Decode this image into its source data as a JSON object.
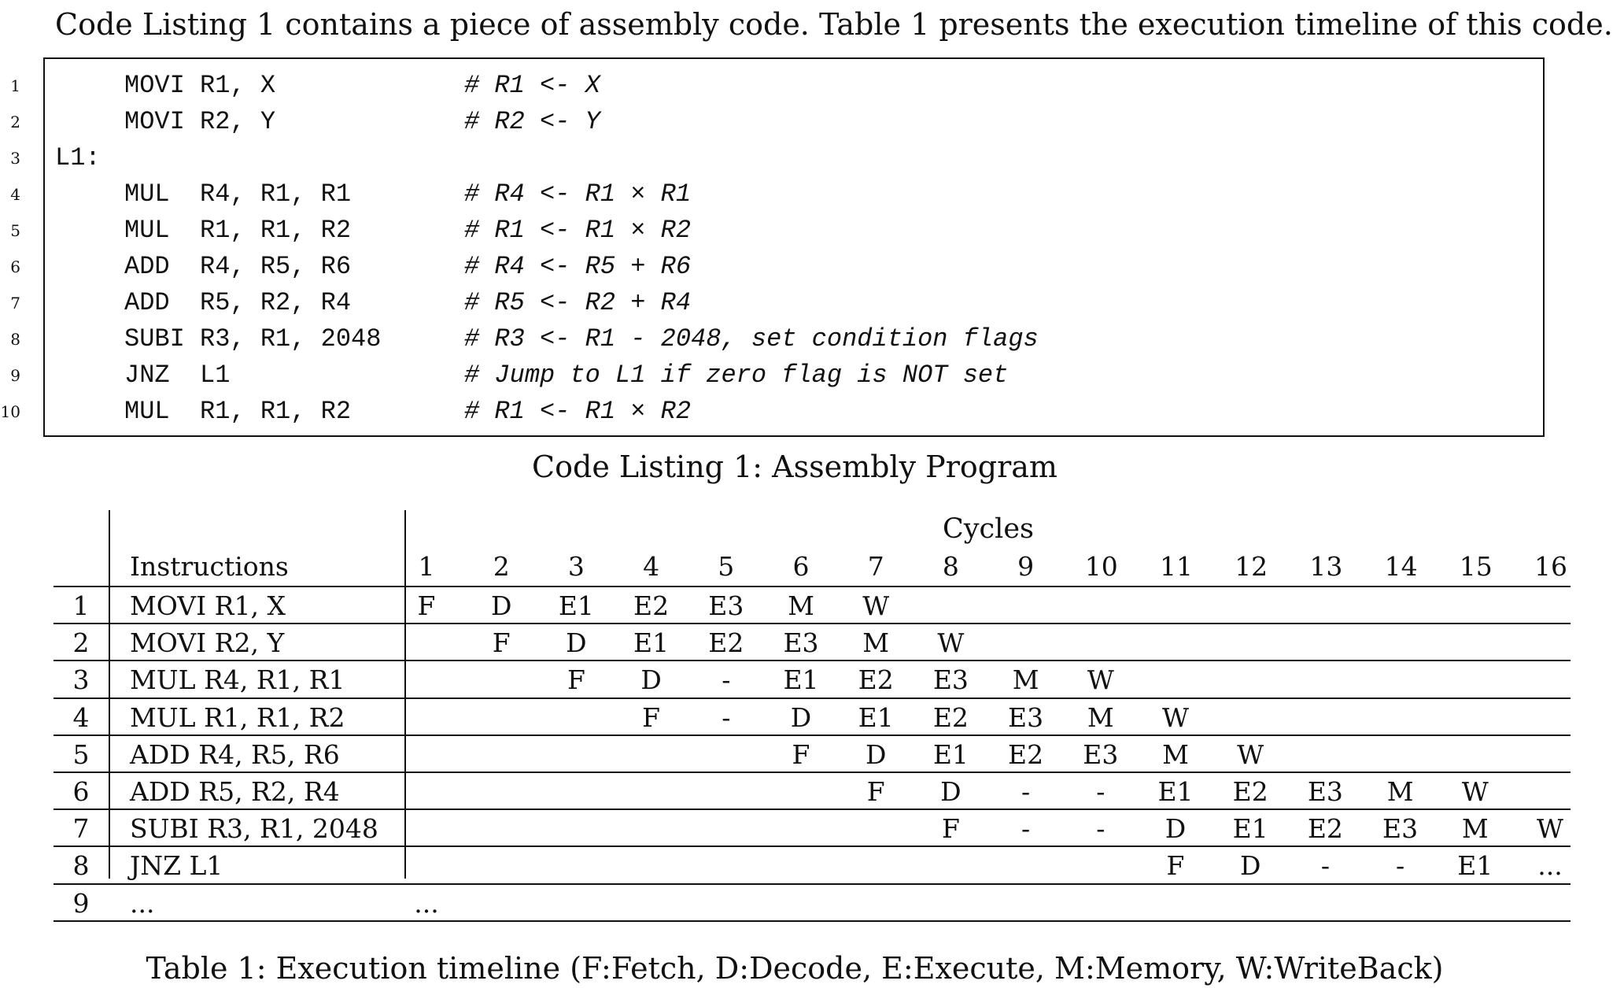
{
  "intro_text": "Code Listing 1 contains a piece of assembly code. Table 1 presents the execution timeline of this code.",
  "listing": {
    "caption": "Code Listing 1: Assembly Program",
    "lines": [
      {
        "num": "1",
        "label": "",
        "instr": "MOVI R1, X",
        "comment": "# R1 <- X"
      },
      {
        "num": "2",
        "label": "",
        "instr": "MOVI R2, Y",
        "comment": "# R2 <- Y"
      },
      {
        "num": "3",
        "label": "L1:",
        "instr": "",
        "comment": ""
      },
      {
        "num": "4",
        "label": "",
        "instr": "MUL  R4, R1, R1",
        "comment": "# R4 <- R1 × R1"
      },
      {
        "num": "5",
        "label": "",
        "instr": "MUL  R1, R1, R2",
        "comment": "# R1 <- R1 × R2"
      },
      {
        "num": "6",
        "label": "",
        "instr": "ADD  R4, R5, R6",
        "comment": "# R4 <- R5 + R6"
      },
      {
        "num": "7",
        "label": "",
        "instr": "ADD  R5, R2, R4",
        "comment": "# R5 <- R2 + R4"
      },
      {
        "num": "8",
        "label": "",
        "instr": "SUBI R3, R1, 2048",
        "comment": "# R3 <- R1 - 2048, set condition flags"
      },
      {
        "num": "9",
        "label": "",
        "instr": "JNZ  L1",
        "comment": "# Jump to L1 if zero flag is NOT set"
      },
      {
        "num": "10",
        "label": "",
        "instr": "MUL  R1, R1, R2",
        "comment": "# R1 <- R1 × R2"
      }
    ]
  },
  "timeline": {
    "cycles_label": "Cycles",
    "instructions_label": "Instructions",
    "cycle_numbers": [
      "1",
      "2",
      "3",
      "4",
      "5",
      "6",
      "7",
      "8",
      "9",
      "10",
      "11",
      "12",
      "13",
      "14",
      "15",
      "16"
    ],
    "rows": [
      {
        "index": "1",
        "instruction": "MOVI R1, X",
        "stages": [
          "F",
          "D",
          "E1",
          "E2",
          "E3",
          "M",
          "W",
          "",
          "",
          "",
          "",
          "",
          "",
          "",
          "",
          ""
        ]
      },
      {
        "index": "2",
        "instruction": "MOVI R2, Y",
        "stages": [
          "",
          "F",
          "D",
          "E1",
          "E2",
          "E3",
          "M",
          "W",
          "",
          "",
          "",
          "",
          "",
          "",
          "",
          ""
        ]
      },
      {
        "index": "3",
        "instruction": "MUL R4, R1, R1",
        "stages": [
          "",
          "",
          "F",
          "D",
          "-",
          "E1",
          "E2",
          "E3",
          "M",
          "W",
          "",
          "",
          "",
          "",
          "",
          ""
        ]
      },
      {
        "index": "4",
        "instruction": "MUL R1, R1, R2",
        "stages": [
          "",
          "",
          "",
          "F",
          "-",
          "D",
          "E1",
          "E2",
          "E3",
          "M",
          "W",
          "",
          "",
          "",
          "",
          ""
        ]
      },
      {
        "index": "5",
        "instruction": "ADD R4, R5, R6",
        "stages": [
          "",
          "",
          "",
          "",
          "",
          "F",
          "D",
          "E1",
          "E2",
          "E3",
          "M",
          "W",
          "",
          "",
          "",
          ""
        ]
      },
      {
        "index": "6",
        "instruction": "ADD R5, R2, R4",
        "stages": [
          "",
          "",
          "",
          "",
          "",
          "",
          "F",
          "D",
          "-",
          "-",
          "E1",
          "E2",
          "E3",
          "M",
          "W",
          ""
        ]
      },
      {
        "index": "7",
        "instruction": "SUBI R3, R1, 2048",
        "stages": [
          "",
          "",
          "",
          "",
          "",
          "",
          "",
          "F",
          "-",
          "-",
          "D",
          "E1",
          "E2",
          "E3",
          "M",
          "W"
        ]
      },
      {
        "index": "8",
        "instruction": "JNZ L1",
        "stages": [
          "",
          "",
          "",
          "",
          "",
          "",
          "",
          "",
          "",
          "",
          "F",
          "D",
          "-",
          "-",
          "E1",
          "..."
        ]
      },
      {
        "index": "9",
        "instruction": "...",
        "stages": [
          "...",
          "",
          "",
          "",
          "",
          "",
          "",
          "",
          "",
          "",
          "",
          "",
          "",
          "",
          "",
          ""
        ]
      }
    ],
    "caption": "Table 1: Execution timeline (F:Fetch, D:Decode, E:Execute, M:Memory, W:WriteBack)"
  }
}
